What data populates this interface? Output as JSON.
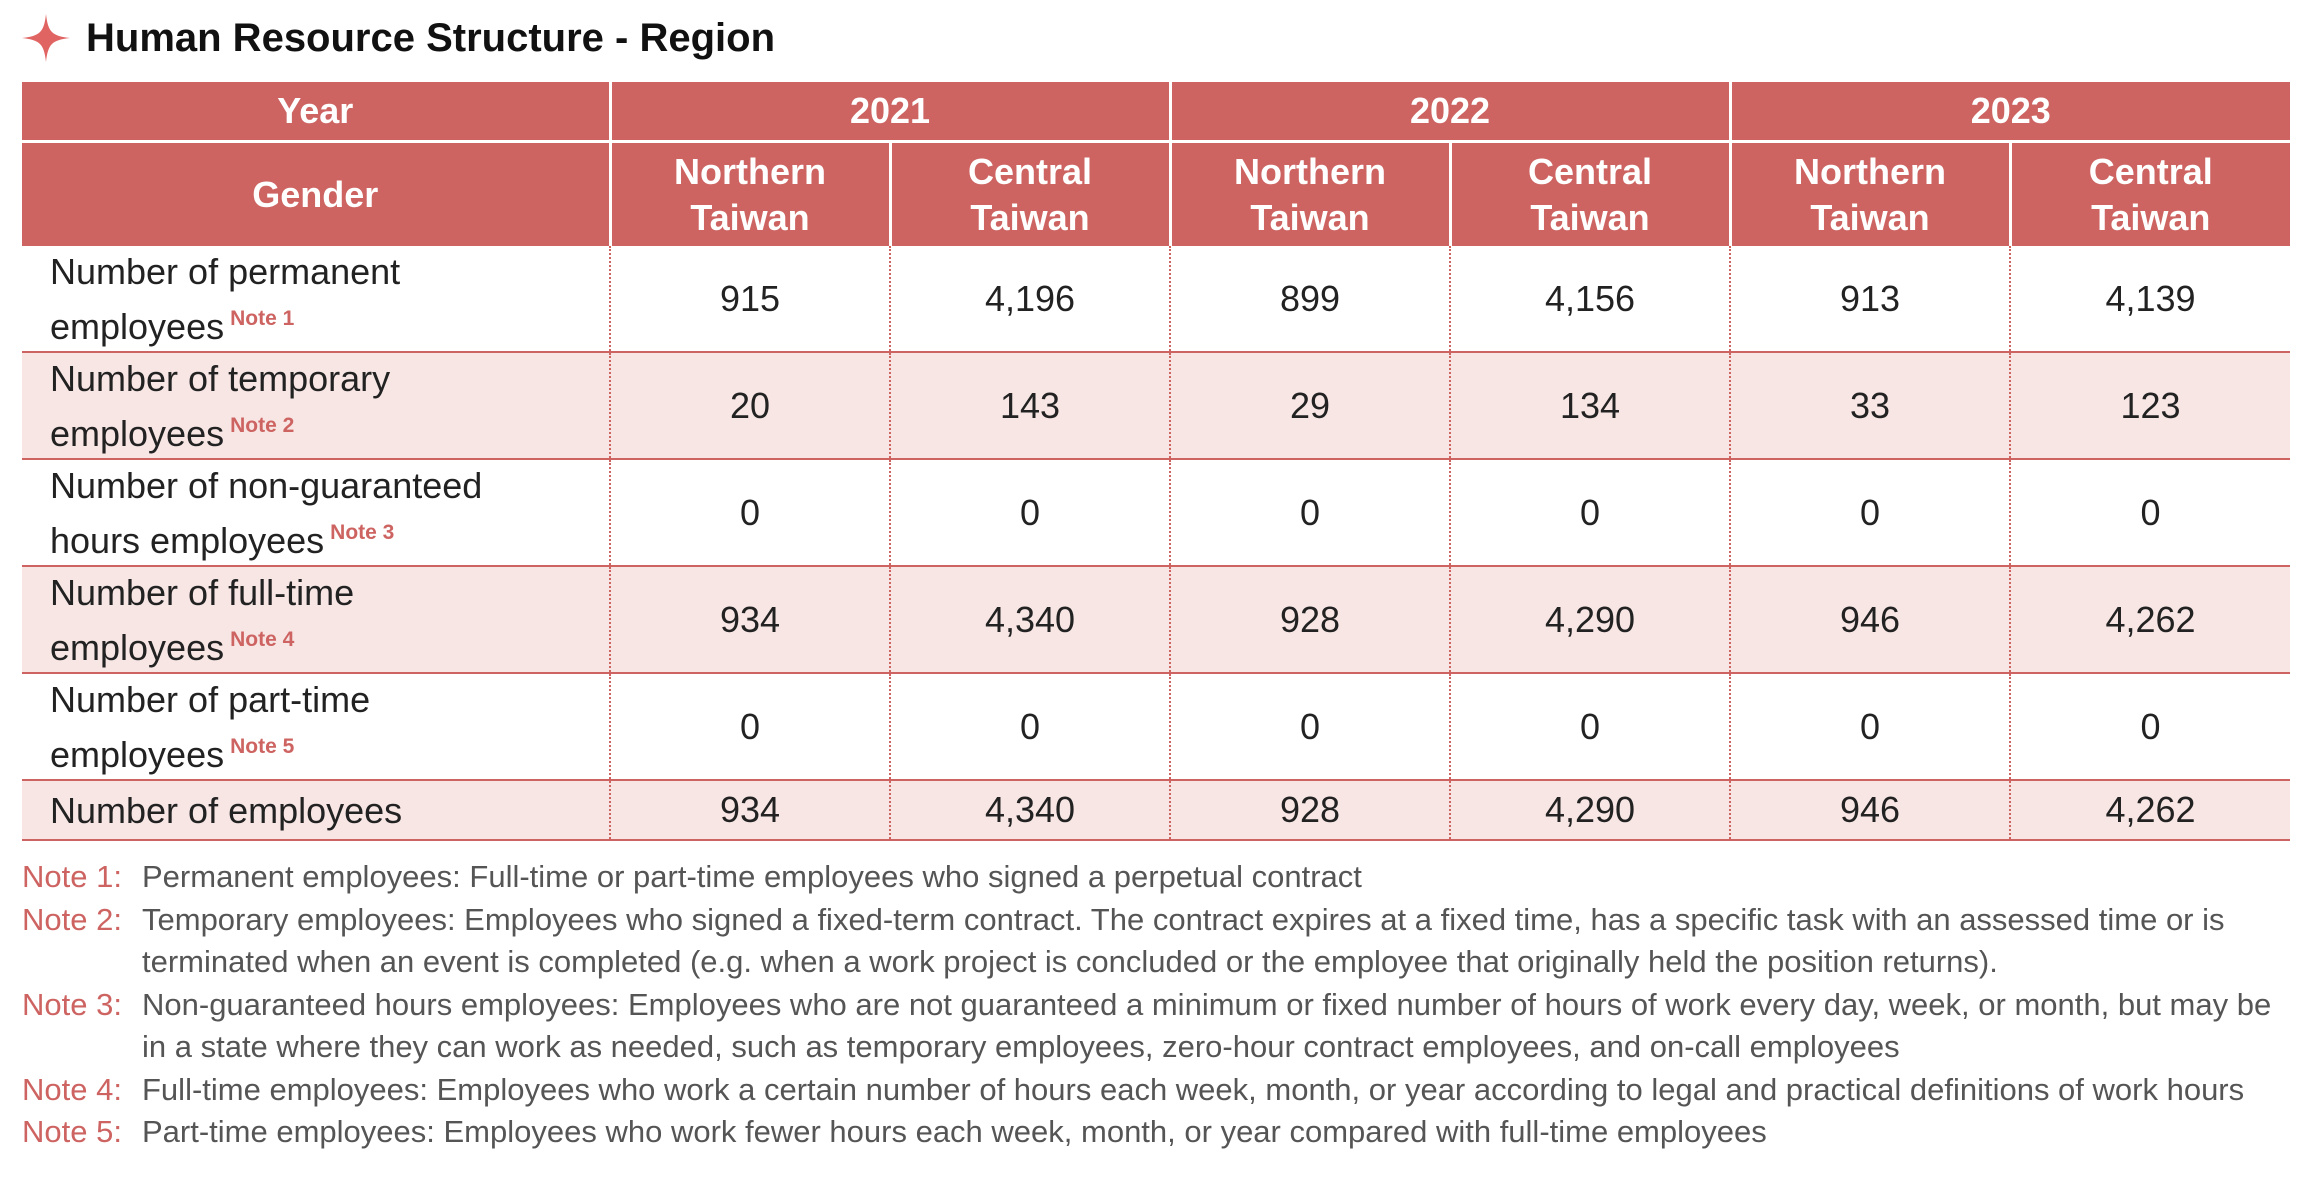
{
  "title": "Human Resource Structure - Region",
  "colors": {
    "accent": "#cd6462",
    "alt_row": "#f7e6e4"
  },
  "icons": {
    "title": "four-point-star-icon"
  },
  "table": {
    "year_label": "Year",
    "gender_label": "Gender",
    "years": [
      "2021",
      "2022",
      "2023"
    ],
    "regions": [
      {
        "line1": "Northern",
        "line2": "Taiwan"
      },
      {
        "line1": "Central",
        "line2": "Taiwan"
      }
    ],
    "rows": [
      {
        "line1": "Number of permanent",
        "line2": "employees",
        "note": "Note 1",
        "values": [
          "915",
          "4,196",
          "899",
          "4,156",
          "913",
          "4,139"
        ]
      },
      {
        "line1": "Number of temporary",
        "line2": "employees",
        "note": "Note 2",
        "values": [
          "20",
          "143",
          "29",
          "134",
          "33",
          "123"
        ]
      },
      {
        "line1": "Number of non-guaranteed",
        "line2": "hours employees",
        "note": "Note 3",
        "values": [
          "0",
          "0",
          "0",
          "0",
          "0",
          "0"
        ]
      },
      {
        "line1": "Number of full-time",
        "line2": "employees",
        "note": "Note 4",
        "values": [
          "934",
          "4,340",
          "928",
          "4,290",
          "946",
          "4,262"
        ]
      },
      {
        "line1": "Number of part-time",
        "line2": "employees",
        "note": "Note 5",
        "values": [
          "0",
          "0",
          "0",
          "0",
          "0",
          "0"
        ]
      },
      {
        "line1": "Number of employees",
        "line2": "",
        "note": "",
        "values": [
          "934",
          "4,340",
          "928",
          "4,290",
          "946",
          "4,262"
        ]
      }
    ]
  },
  "notes": [
    {
      "label": "Note 1:",
      "text": "Permanent employees: Full-time or part-time employees who signed a perpetual contract"
    },
    {
      "label": "Note 2:",
      "text": "Temporary employees: Employees who signed a fixed-term contract. The contract expires at a fixed time, has a specific task with an assessed time or is terminated when an event is completed (e.g. when a work project is concluded or the employee that originally held the position returns)."
    },
    {
      "label": "Note 3:",
      "text": "Non-guaranteed hours employees: Employees who are not guaranteed a minimum or fixed number of hours of work every day, week, or month, but may be in a state where they can work as needed, such as temporary employees, zero-hour contract employees, and on-call employees"
    },
    {
      "label": "Note 4:",
      "text": "Full-time employees: Employees who work a certain number of hours each week, month, or year according to legal and practical definitions of work hours"
    },
    {
      "label": "Note 5:",
      "text": "Part-time employees: Employees who work fewer hours each week, month, or year compared with full-time employees"
    }
  ]
}
